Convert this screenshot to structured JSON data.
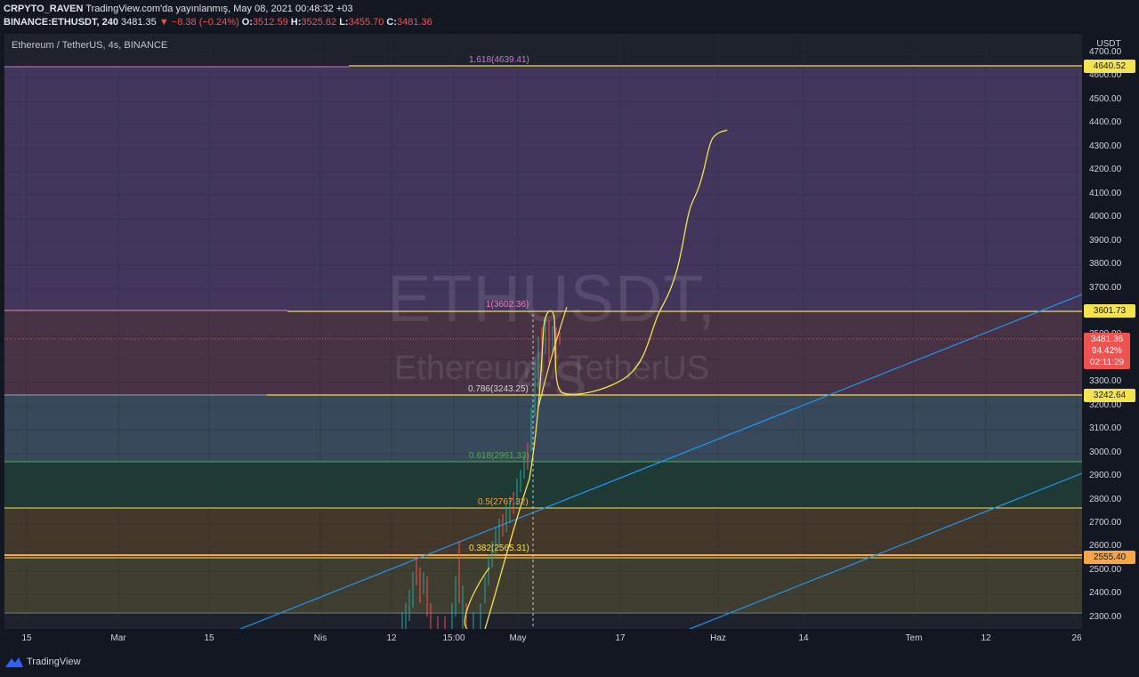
{
  "header": {
    "line1_user": "CRPYTO_RAVEN",
    "line1_rest": "TradingView.com'da yayınlanmış, May 08, 2021 00:48:32 +03",
    "symbol": "BINANCE:ETHUSDT, 240",
    "price": "3481.35",
    "change": "▼ −8.38 (−0.24%)",
    "o_label": "O:",
    "o_value": "3512.59",
    "h_label": "H:",
    "h_value": "3525.62",
    "l_label": "L:",
    "l_value": "3455.70",
    "c_label": "C:",
    "c_value": "3481.36"
  },
  "pane_title": "Ethereum / TetherUS, 4s, BINANCE",
  "watermark": {
    "symbol": "ETHUSDT, 4s",
    "name": "Ethereum / TetherUS"
  },
  "price_axis": {
    "unit": "USDT",
    "ticks": [
      "4700.00",
      "4600.00",
      "4500.00",
      "4400.00",
      "4300.00",
      "4200.00",
      "4100.00",
      "4000.00",
      "3900.00",
      "3800.00",
      "3700.00",
      "3600.00",
      "3500.00",
      "3400.00",
      "3300.00",
      "3200.00",
      "3100.00",
      "3000.00",
      "2900.00",
      "2800.00",
      "2700.00",
      "2600.00",
      "2500.00",
      "2400.00",
      "2300.00"
    ],
    "labels": [
      {
        "text": "4640.52",
        "color": "#f3e34f"
      },
      {
        "text": "3601.73",
        "color": "#f3e34f"
      },
      {
        "text": "3242.64",
        "color": "#f3e34f"
      },
      {
        "text": "2555.40",
        "color": "#f7a545"
      }
    ],
    "current": {
      "price": "3481.36",
      "percent": "94.42%",
      "countdown": "02:11:29",
      "color": "#ef5350"
    }
  },
  "time_axis": [
    "15",
    "Mar",
    "15",
    "Nis",
    "12",
    "15:00",
    "May",
    "17",
    "Haz",
    "14",
    "Tem",
    "12",
    "26"
  ],
  "fib_levels": [
    {
      "label": "1.618(4639.41)",
      "color": "#c67ad8"
    },
    {
      "label": "1(3602.36)",
      "color": "#e880b5"
    },
    {
      "label": "0.786(3243.25)",
      "color": "#d1d4dc"
    },
    {
      "label": "0.618(2961.33)",
      "color": "#4caf50"
    },
    {
      "label": "0.5(2767.32)",
      "color": "#f7a545"
    },
    {
      "label": "0.382(2565.31)",
      "color": "#f3e34f"
    }
  ],
  "colors": {
    "accent": "#f3e34f",
    "negative": "#ef5350",
    "trendline": "#2196f3"
  },
  "footer": {
    "brand": "TradingView"
  }
}
